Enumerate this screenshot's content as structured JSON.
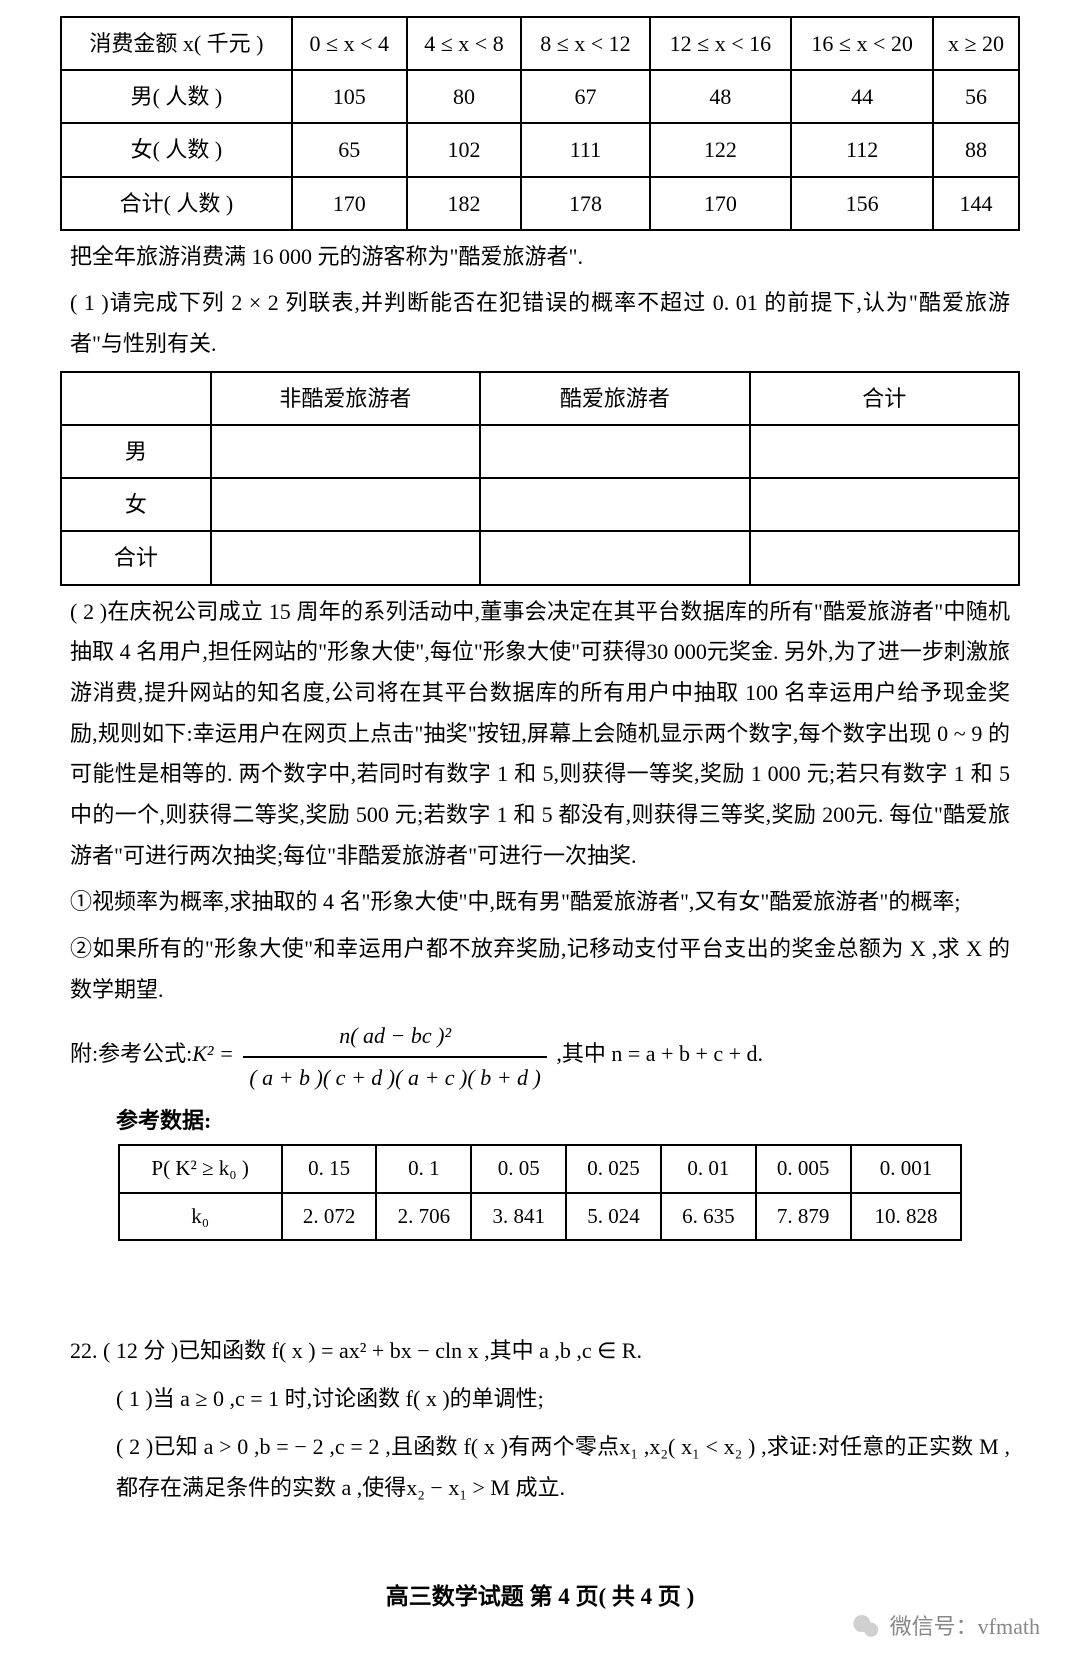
{
  "table1": {
    "header": [
      "消费金额 x( 千元 )",
      "0 ≤ x < 4",
      "4 ≤ x < 8",
      "8 ≤ x < 12",
      "12 ≤ x < 16",
      "16 ≤ x < 20",
      "x ≥ 20"
    ],
    "rows": [
      [
        "男( 人数 )",
        "105",
        "80",
        "67",
        "48",
        "44",
        "56"
      ],
      [
        "女( 人数 )",
        "65",
        "102",
        "111",
        "122",
        "112",
        "88"
      ],
      [
        "合计( 人数 )",
        "170",
        "182",
        "178",
        "170",
        "156",
        "144"
      ]
    ]
  },
  "p1": "把全年旅游消费满 16 000 元的游客称为\"酷爱旅游者\".",
  "p2": "( 1 )请完成下列 2 × 2 列联表,并判断能否在犯错误的概率不超过 0. 01 的前提下,认为\"酷爱旅游者\"与性别有关.",
  "table2": {
    "header": [
      "",
      "非酷爱旅游者",
      "酷爱旅游者",
      "合计"
    ],
    "rows": [
      [
        "男",
        "",
        "",
        ""
      ],
      [
        "女",
        "",
        "",
        ""
      ],
      [
        "合计",
        "",
        "",
        ""
      ]
    ]
  },
  "p3": "( 2 )在庆祝公司成立 15 周年的系列活动中,董事会决定在其平台数据库的所有\"酷爱旅游者\"中随机抽取 4 名用户,担任网站的\"形象大使\",每位\"形象大使\"可获得30 000元奖金. 另外,为了进一步刺激旅游消费,提升网站的知名度,公司将在其平台数据库的所有用户中抽取 100 名幸运用户给予现金奖励,规则如下:幸运用户在网页上点击\"抽奖\"按钮,屏幕上会随机显示两个数字,每个数字出现 0 ~ 9 的可能性是相等的. 两个数字中,若同时有数字 1 和 5,则获得一等奖,奖励 1 000 元;若只有数字 1 和 5中的一个,则获得二等奖,奖励 500 元;若数字 1 和 5 都没有,则获得三等奖,奖励 200元. 每位\"酷爱旅游者\"可进行两次抽奖;每位\"非酷爱旅游者\"可进行一次抽奖.",
  "p4": "①视频率为概率,求抽取的 4 名\"形象大使\"中,既有男\"酷爱旅游者\",又有女\"酷爱旅游者\"的概率;",
  "p5": "②如果所有的\"形象大使\"和幸运用户都不放弃奖励,记移动支付平台支出的奖金总额为 X ,求 X 的数学期望.",
  "formula_label": "附:参考公式:",
  "formula_lhs": "K² = ",
  "formula_num": "n( ad − bc )²",
  "formula_den": "( a + b )( c + d )( a + c )( b + d )",
  "formula_tail": ",其中 n = a + b + c + d.",
  "ref_data_label": "参考数据:",
  "table3": {
    "rows": [
      [
        "P( K² ≥ k₀ )",
        "0. 15",
        "0. 1",
        "0. 05",
        "0. 025",
        "0. 01",
        "0. 005",
        "0. 001"
      ],
      [
        "k₀",
        "2. 072",
        "2. 706",
        "3. 841",
        "5. 024",
        "6. 635",
        "7. 879",
        "10. 828"
      ]
    ]
  },
  "q22_head": "22. ( 12 分 )已知函数 f( x ) = ax² + bx − cln x ,其中 a ,b ,c ∈ R.",
  "q22_1": "( 1 )当 a ≥ 0 ,c = 1 时,讨论函数 f( x )的单调性;",
  "q22_2": "( 2 )已知 a > 0 ,b = − 2 ,c = 2 ,且函数 f( x )有两个零点x₁ ,x₂( x₁ < x₂ ) ,求证:对任意的正实数 M ,都存在满足条件的实数 a ,使得x₂ − x₁ > M 成立.",
  "footer": "高三数学试题 第 4 页( 共 4 页 )",
  "wechat_label": "微信号：vfmath"
}
